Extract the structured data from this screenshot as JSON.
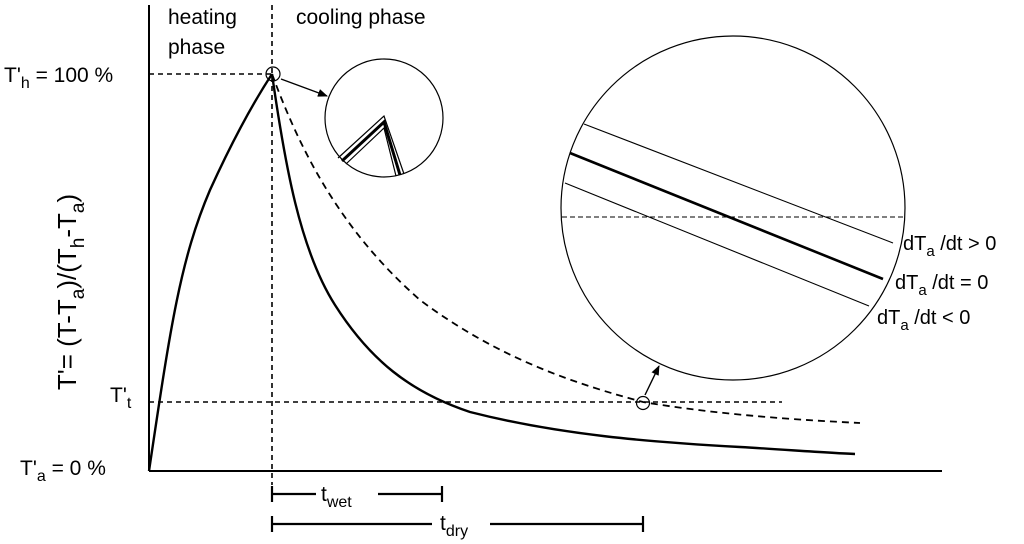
{
  "phases": {
    "heating_line1": "heating",
    "heating_line2": "phase",
    "cooling": "cooling phase"
  },
  "axis": {
    "ylabel_main": "T'= (T-T",
    "ylabel_sub1": "a",
    "ylabel_mid": ")/(T",
    "ylabel_sub2": "h",
    "ylabel_mid2": "-T",
    "ylabel_sub3": "a",
    "ylabel_end": ")"
  },
  "y_ticks": {
    "th_main": "T'",
    "th_sub": "h",
    "th_value": " = 100 %",
    "tt_main": "T'",
    "tt_sub": "t",
    "ta_main": "T'",
    "ta_sub": "a",
    "ta_value": " = 0 %"
  },
  "durations": {
    "wet_main": "t",
    "wet_sub": "wet",
    "dry_main": "t",
    "dry_sub": "dry"
  },
  "zoom_labels": {
    "gt_main": "dT",
    "gt_sub": "a",
    "gt_rest": " /dt > 0",
    "eq_main": "dT",
    "eq_sub": "a",
    "eq_rest": " /dt = 0",
    "lt_main": "dT",
    "lt_sub": "a",
    "lt_rest": " /dt < 0"
  },
  "curves": {
    "solid": "temperature curve (wet)",
    "dashed": "temperature curve (dry)"
  }
}
